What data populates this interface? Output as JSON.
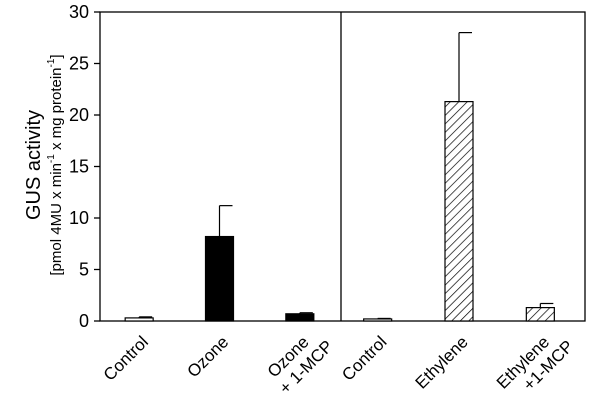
{
  "chart_data": {
    "type": "bar",
    "title": "",
    "ylabel": {
      "line1": "GUS activity",
      "line2_prefix": "[pmol 4MU x min",
      "line2_exp1": "-1",
      "line2_mid": " x mg protein",
      "line2_exp2": "-1",
      "line2_suffix": "]"
    },
    "xlabel": "",
    "ylim": [
      0,
      30
    ],
    "yticks": [
      "0",
      "5",
      "10",
      "15",
      "20",
      "25",
      "30"
    ],
    "grid": false,
    "panels": [
      {
        "fill": "solid",
        "bars": [
          {
            "category": [
              "Control"
            ],
            "value": 0.3,
            "error": 0.1,
            "fill": "white"
          },
          {
            "category": [
              "Ozone"
            ],
            "value": 8.2,
            "error": 3.0,
            "fill": "black"
          },
          {
            "category": [
              "Ozone",
              "+ 1-MCP"
            ],
            "value": 0.7,
            "error": 0.1,
            "fill": "black"
          }
        ]
      },
      {
        "fill": "hatched",
        "bars": [
          {
            "category": [
              "Control"
            ],
            "value": 0.2,
            "error": 0.05,
            "fill": "white"
          },
          {
            "category": [
              "Ethylene"
            ],
            "value": 21.3,
            "error": 6.7,
            "fill": "hatch"
          },
          {
            "category": [
              "Ethylene",
              "+1-MCP"
            ],
            "value": 1.3,
            "error": 0.4,
            "fill": "hatch"
          }
        ]
      }
    ]
  }
}
